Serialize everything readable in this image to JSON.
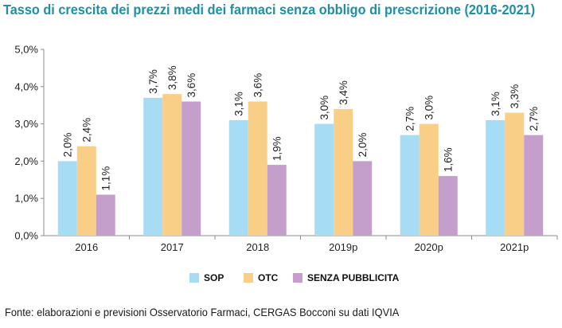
{
  "title": "Tasso di crescita dei prezzi medi dei farmaci senza obbligo di prescrizione (2016-2021)",
  "source": "Fonte: elaborazioni e previsioni Osservatorio Farmaci, CERGAS Bocconi su dati IQVIA",
  "chart_data": {
    "type": "bar",
    "categories": [
      "2016",
      "2017",
      "2018",
      "2019p",
      "2020p",
      "2021p"
    ],
    "series": [
      {
        "name": "SOP",
        "color": "#a6dcf4",
        "values": [
          2.0,
          3.7,
          3.1,
          3.0,
          2.7,
          3.1
        ],
        "labels": [
          "2,0%",
          "3,7%",
          "3,1%",
          "3,0%",
          "2,7%",
          "3,1%"
        ]
      },
      {
        "name": "OTC",
        "color": "#f9cf88",
        "values": [
          2.4,
          3.8,
          3.6,
          3.4,
          3.0,
          3.3
        ],
        "labels": [
          "2,4%",
          "3,8%",
          "3,6%",
          "3,4%",
          "3,0%",
          "3,3%"
        ]
      },
      {
        "name": "SENZA PUBBLICITA",
        "color": "#c59fcb",
        "values": [
          1.1,
          3.6,
          1.9,
          2.0,
          1.6,
          2.7
        ],
        "labels": [
          "1,1%",
          "3,6%",
          "1,9%",
          "2,0%",
          "1,6%",
          "2,7%"
        ]
      }
    ],
    "yticks": [
      "0,0%",
      "1,0%",
      "2,0%",
      "3,0%",
      "4,0%",
      "5,0%"
    ],
    "ylim": [
      0,
      5
    ],
    "xlabel": "",
    "ylabel": "",
    "grid": false,
    "legend": "bottom"
  }
}
